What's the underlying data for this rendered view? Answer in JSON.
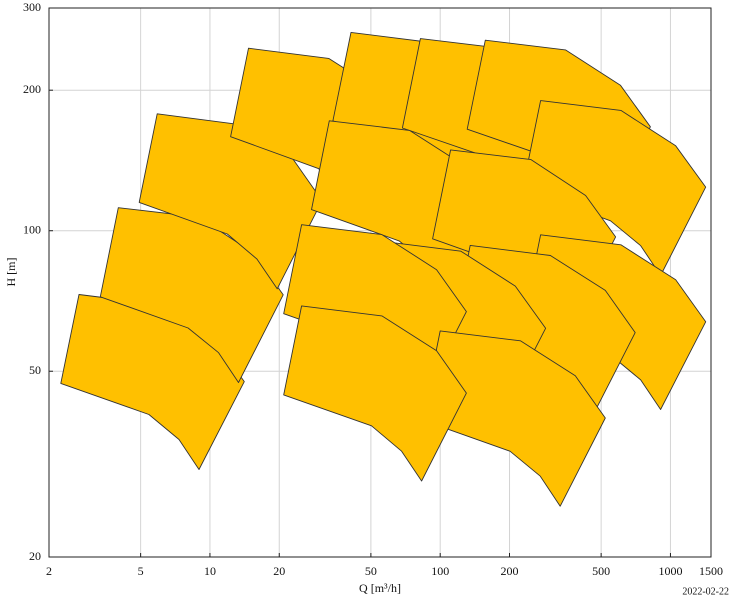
{
  "chart_data": {
    "type": "polygon",
    "x_label": "Q [m³/h]",
    "y_label": "H [m]",
    "footnote": "2022-02-22",
    "log_x": true,
    "log_y": true,
    "grid": true,
    "color": "#ffc000",
    "edge_color": "#333333",
    "xlim": [
      2,
      1500
    ],
    "ylim": [
      20,
      300
    ],
    "xticks": [
      2,
      5,
      10,
      20,
      50,
      100,
      200,
      500,
      1000,
      1500
    ],
    "yticks": [
      20,
      50,
      100,
      200,
      300
    ],
    "series": [
      {
        "x": [
          2.25,
          2.7,
          6.02,
          10.4,
          14.1,
          8.96,
          7.34,
          5.43
        ],
        "values": [
          47.1,
          73,
          69.5,
          58.5,
          47.5,
          30.8,
          35.7,
          40.4
        ]
      },
      {
        "x": [
          3.34,
          4,
          8.92,
          15.4,
          20.8,
          13.3,
          10.9,
          8.04
        ],
        "values": [
          72.2,
          112,
          107,
          89.7,
          72.9,
          47.3,
          54.8,
          61.9
        ]
      },
      {
        "x": [
          4.93,
          5.9,
          13.2,
          22.8,
          30.7,
          19.6,
          16,
          11.9
        ],
        "values": [
          115,
          178,
          169,
          143,
          116,
          75.1,
          87,
          98.4
        ]
      },
      {
        "x": [
          12.3,
          14.7,
          32.8,
          56.7,
          76.6,
          48.8,
          40,
          29.5
        ],
        "values": [
          159,
          246,
          234,
          197,
          160,
          104,
          120,
          136
        ]
      },
      {
        "x": [
          34.2,
          41,
          91.4,
          158,
          214,
          136,
          112,
          82.4
        ],
        "values": [
          172,
          266,
          253,
          213,
          173,
          112,
          130,
          147
        ]
      },
      {
        "x": [
          68.5,
          82,
          183,
          317,
          427,
          272,
          223,
          165
        ],
        "values": [
          166,
          258,
          246,
          207,
          168,
          109,
          126,
          143
        ]
      },
      {
        "x": [
          131,
          157,
          350,
          606,
          818,
          521,
          427,
          316
        ],
        "values": [
          165,
          256,
          244,
          205,
          167,
          108,
          125,
          142
        ]
      },
      {
        "x": [
          228,
          273,
          609,
          1054,
          1422,
          906,
          743,
          549
        ],
        "values": [
          123,
          190,
          181,
          152,
          124,
          80.2,
          92.9,
          105
        ]
      },
      {
        "x": [
          27.6,
          33,
          73.6,
          127,
          172,
          110,
          89.8,
          66.3
        ],
        "values": [
          111,
          172,
          164,
          138,
          112,
          72.6,
          84.1,
          95.1
        ]
      },
      {
        "x": [
          92.7,
          111,
          248,
          428,
          578,
          369,
          302,
          223
        ],
        "values": [
          96.1,
          149,
          142,
          119,
          97,
          62.9,
          72.9,
          82.4
        ]
      },
      {
        "x": [
          228,
          273,
          609,
          1054,
          1422,
          906,
          743,
          549
        ],
        "values": [
          63.2,
          98,
          93.3,
          78.5,
          63.8,
          41.4,
          47.9,
          54.2
        ]
      },
      {
        "x": [
          113,
          135,
          301,
          521,
          703,
          448,
          367,
          271
        ],
        "values": [
          60,
          93,
          88.5,
          74.5,
          60.5,
          39.2,
          45.5,
          51.4
        ]
      },
      {
        "x": [
          45.9,
          55,
          123,
          212,
          287,
          183,
          150,
          111
        ],
        "values": [
          61.3,
          95,
          90.4,
          76.1,
          61.8,
          40.1,
          46.5,
          52.5
        ]
      },
      {
        "x": [
          20.9,
          25,
          55.8,
          96.5,
          130,
          83,
          68,
          50.3
        ],
        "values": [
          66.4,
          103,
          98.1,
          82.5,
          67.1,
          43.5,
          50.4,
          57
        ]
      },
      {
        "x": [
          83.5,
          100,
          223,
          386,
          521,
          332,
          272,
          201
        ],
        "values": [
          39.3,
          61,
          58.1,
          48.9,
          39.7,
          25.7,
          29.8,
          33.7
        ]
      },
      {
        "x": [
          20.9,
          25,
          55.8,
          96.5,
          130,
          83,
          68,
          50.3
        ],
        "values": [
          44.5,
          69,
          65.7,
          55.3,
          44.9,
          29.1,
          33.7,
          38.2
        ]
      }
    ]
  }
}
